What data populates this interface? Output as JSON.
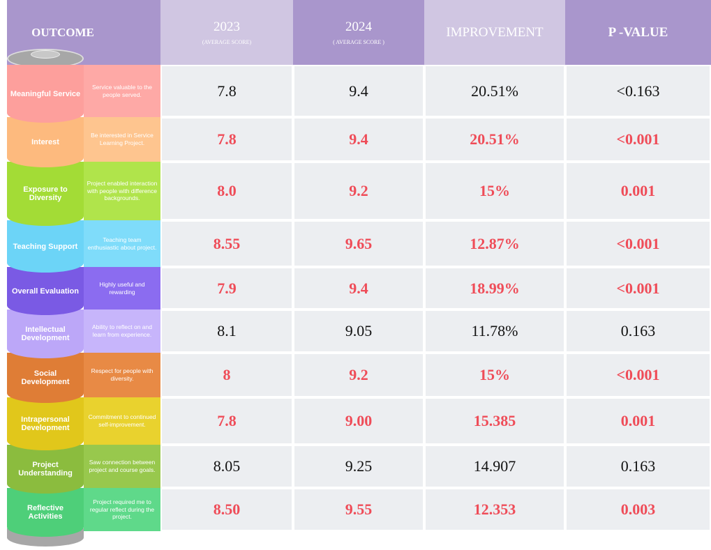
{
  "header": {
    "outcome": "OUTCOME",
    "col2023": "2023",
    "col2023_sub": "(AVERAGE SCORE)",
    "col2024": "2024",
    "col2024_sub": "( AVERAGE SCORE )",
    "improvement": "IMPROVEMENT",
    "p_value": "P -VALUE"
  },
  "rows": [
    {
      "label": "Meaningful Service",
      "description": "Service valuable to the people served.",
      "y2023": "7.8",
      "y2024": "9.4",
      "improvement": "20.51%",
      "p_value": "<0.163",
      "highlight": false,
      "color": "#fd9f9c",
      "light": "#fea9a6"
    },
    {
      "label": "Interest",
      "description": "Be interested in Service Learning Project.",
      "y2023": "7.8",
      "y2024": "9.4",
      "improvement": "20.51%",
      "p_value": "<0.001",
      "highlight": true,
      "color": "#fdba7e",
      "light": "#fec58f"
    },
    {
      "label": "Exposure to Diversity",
      "description": "Project enabled interaction with people with difference backgrounds.",
      "y2023": "8.0",
      "y2024": "9.2",
      "improvement": "15%",
      "p_value": "0.001",
      "highlight": true,
      "color": "#a3dc36",
      "light": "#b0e44b"
    },
    {
      "label": "Teaching Support",
      "description": "Teaching team enthusiastic about project.",
      "y2023": "8.55",
      "y2024": "9.65",
      "improvement": "12.87%",
      "p_value": "<0.001",
      "highlight": true,
      "color": "#6cd4f7",
      "light": "#7fdcfa"
    },
    {
      "label": "Overall Evaluation",
      "description": "Highly useful and rewarding",
      "y2023": "7.9",
      "y2024": "9.4",
      "improvement": "18.99%",
      "p_value": "<0.001",
      "highlight": true,
      "color": "#7a5ae4",
      "light": "#8b6cf0"
    },
    {
      "label": "Intellectual Development",
      "description": "Ability to reflect on and learn from experience.",
      "y2023": "8.1",
      "y2024": "9.05",
      "improvement": "11.78%",
      "p_value": "0.163",
      "highlight": false,
      "color": "#bca7f8",
      "light": "#c7b5fb"
    },
    {
      "label": "Social Development",
      "description": "Respect for people with diversity.",
      "y2023": "8",
      "y2024": "9.2",
      "improvement": "15%",
      "p_value": "<0.001",
      "highlight": true,
      "color": "#df7d36",
      "light": "#e88a45"
    },
    {
      "label": "Intrapersonal Development",
      "description": "Commitment to continued self-improvement.",
      "y2023": "7.8",
      "y2024": "9.00",
      "improvement": "15.385",
      "p_value": "0.001",
      "highlight": true,
      "color": "#e1c71b",
      "light": "#e9d22e"
    },
    {
      "label": "Project Understanding",
      "description": "Saw connection between project and course goals.",
      "y2023": "8.05",
      "y2024": "9.25",
      "improvement": "14.907",
      "p_value": "0.163",
      "highlight": false,
      "color": "#8bbc3e",
      "light": "#98c84d"
    },
    {
      "label": "Reflective Activities",
      "description": "Project required me to regular reflect during the project.",
      "y2023": "8.50",
      "y2024": "9.55",
      "improvement": "12.353",
      "p_value": "0.003",
      "highlight": true,
      "color": "#4ecf79",
      "light": "#5fd98a"
    }
  ]
}
